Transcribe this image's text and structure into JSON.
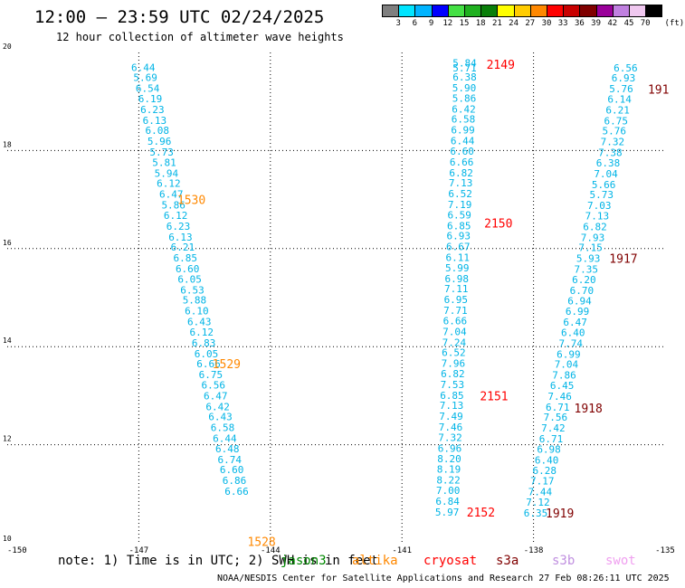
{
  "header": {
    "title": "12:00 – 23:59 UTC 02/24/2025",
    "subtitle": "12 hour collection of altimeter wave heights"
  },
  "colorbar": {
    "unit": "(ft)",
    "labels": [
      "3",
      "6",
      "9",
      "12",
      "15",
      "18",
      "21",
      "24",
      "27",
      "30",
      "33",
      "36",
      "39",
      "42",
      "45",
      "70"
    ],
    "colors": [
      "#7f7f7f",
      "#00e5ff",
      "#00b4ff",
      "#0000ff",
      "#44e044",
      "#1fb01f",
      "#0a7f0a",
      "#ffff00",
      "#ffcc00",
      "#ff8800",
      "#ff0000",
      "#c80000",
      "#800000",
      "#9a009a",
      "#c080e0",
      "#f0c8f0",
      "#000000"
    ]
  },
  "chart_data": {
    "type": "scatter",
    "xlabel": "",
    "ylabel": "",
    "xlim": [
      -150,
      -135
    ],
    "ylim": [
      10,
      20
    ],
    "xticks": [
      "-150",
      "-147",
      "-144",
      "-141",
      "-138",
      "-135"
    ],
    "yticks": [
      "10",
      "12",
      "14",
      "16",
      "18",
      "20"
    ],
    "grid": true,
    "tracks": [
      {
        "satellite": "altika",
        "color": "#00b4e6",
        "label_color": "#ff8800",
        "points": [
          {
            "lon": -146.9,
            "lat": 19.7,
            "v": "6.44"
          },
          {
            "lon": -146.85,
            "lat": 19.49,
            "v": "5.69"
          },
          {
            "lon": -146.8,
            "lat": 19.27,
            "v": "6.54"
          },
          {
            "lon": -146.74,
            "lat": 19.06,
            "v": "6.19"
          },
          {
            "lon": -146.69,
            "lat": 18.84,
            "v": "6.23"
          },
          {
            "lon": -146.64,
            "lat": 18.62,
            "v": "6.13"
          },
          {
            "lon": -146.58,
            "lat": 18.41,
            "v": "6.08"
          },
          {
            "lon": -146.53,
            "lat": 18.19,
            "v": "5.96"
          },
          {
            "lon": -146.48,
            "lat": 17.97,
            "v": "5.73"
          },
          {
            "lon": -146.42,
            "lat": 17.76,
            "v": "5.81"
          },
          {
            "lon": -146.37,
            "lat": 17.54,
            "v": "5.94"
          },
          {
            "lon": -146.32,
            "lat": 17.33,
            "v": "6.12"
          },
          {
            "lon": -146.26,
            "lat": 17.11,
            "v": "6.47"
          },
          {
            "lon": -146.21,
            "lat": 16.89,
            "v": "5.86"
          },
          {
            "lon": -146.16,
            "lat": 16.68,
            "v": "6.12"
          },
          {
            "lon": -146.1,
            "lat": 16.46,
            "v": "6.23"
          },
          {
            "lon": -146.05,
            "lat": 16.24,
            "v": "6.13"
          },
          {
            "lon": -146.0,
            "lat": 16.03,
            "v": "6.21"
          },
          {
            "lon": -145.94,
            "lat": 15.81,
            "v": "6.85"
          },
          {
            "lon": -145.89,
            "lat": 15.59,
            "v": "6.60"
          },
          {
            "lon": -145.84,
            "lat": 15.38,
            "v": "6.05"
          },
          {
            "lon": -145.78,
            "lat": 15.16,
            "v": "6.53"
          },
          {
            "lon": -145.73,
            "lat": 14.95,
            "v": "5.88"
          },
          {
            "lon": -145.68,
            "lat": 14.73,
            "v": "6.10"
          },
          {
            "lon": -145.62,
            "lat": 14.51,
            "v": "6.43"
          },
          {
            "lon": -145.57,
            "lat": 14.3,
            "v": "6.12"
          },
          {
            "lon": -145.52,
            "lat": 14.08,
            "v": "6.83"
          },
          {
            "lon": -145.46,
            "lat": 13.86,
            "v": "6.05"
          },
          {
            "lon": -145.41,
            "lat": 13.65,
            "v": "6.66"
          },
          {
            "lon": -145.36,
            "lat": 13.43,
            "v": "6.75"
          },
          {
            "lon": -145.3,
            "lat": 13.22,
            "v": "6.56"
          },
          {
            "lon": -145.25,
            "lat": 13.0,
            "v": "6.47"
          },
          {
            "lon": -145.2,
            "lat": 12.78,
            "v": "6.42"
          },
          {
            "lon": -145.14,
            "lat": 12.57,
            "v": "6.43"
          },
          {
            "lon": -145.09,
            "lat": 12.35,
            "v": "6.58"
          },
          {
            "lon": -145.04,
            "lat": 12.13,
            "v": "6.44"
          },
          {
            "lon": -144.98,
            "lat": 11.92,
            "v": "6.48"
          },
          {
            "lon": -144.93,
            "lat": 11.7,
            "v": "6.74"
          },
          {
            "lon": -144.88,
            "lat": 11.49,
            "v": "6.60"
          },
          {
            "lon": -144.82,
            "lat": 11.27,
            "v": "6.86"
          },
          {
            "lon": -144.77,
            "lat": 11.05,
            "v": "6.66"
          }
        ],
        "times": [
          {
            "lon": -145.8,
            "lat": 17.0,
            "t": "1530"
          },
          {
            "lon": -145.0,
            "lat": 13.65,
            "t": "1529"
          },
          {
            "lon": -144.2,
            "lat": 10.03,
            "t": "1528"
          }
        ]
      },
      {
        "satellite": "cryosat",
        "color": "#00b4e6",
        "label_color": "#ff0000",
        "points": [
          {
            "lon": -139.57,
            "lat": 19.79,
            "v": "5.84"
          },
          {
            "lon": -139.57,
            "lat": 19.69,
            "v": "5.71"
          },
          {
            "lon": -139.57,
            "lat": 19.5,
            "v": "6.38"
          },
          {
            "lon": -139.58,
            "lat": 19.28,
            "v": "5.90"
          },
          {
            "lon": -139.58,
            "lat": 19.07,
            "v": "5.86"
          },
          {
            "lon": -139.59,
            "lat": 18.85,
            "v": "6.42"
          },
          {
            "lon": -139.6,
            "lat": 18.64,
            "v": "6.58"
          },
          {
            "lon": -139.61,
            "lat": 18.42,
            "v": "6.99"
          },
          {
            "lon": -139.62,
            "lat": 18.2,
            "v": "6.44"
          },
          {
            "lon": -139.63,
            "lat": 17.99,
            "v": "6.60"
          },
          {
            "lon": -139.64,
            "lat": 17.77,
            "v": "6.66"
          },
          {
            "lon": -139.65,
            "lat": 17.55,
            "v": "6.82"
          },
          {
            "lon": -139.66,
            "lat": 17.34,
            "v": "7.13"
          },
          {
            "lon": -139.67,
            "lat": 17.12,
            "v": "6.52"
          },
          {
            "lon": -139.68,
            "lat": 16.9,
            "v": "7.19"
          },
          {
            "lon": -139.69,
            "lat": 16.69,
            "v": "6.59"
          },
          {
            "lon": -139.7,
            "lat": 16.47,
            "v": "6.85"
          },
          {
            "lon": -139.71,
            "lat": 16.26,
            "v": "6.93"
          },
          {
            "lon": -139.72,
            "lat": 16.04,
            "v": "6.67"
          },
          {
            "lon": -139.73,
            "lat": 15.82,
            "v": "6.11"
          },
          {
            "lon": -139.74,
            "lat": 15.61,
            "v": "5.99"
          },
          {
            "lon": -139.75,
            "lat": 15.39,
            "v": "6.98"
          },
          {
            "lon": -139.76,
            "lat": 15.18,
            "v": "7.11"
          },
          {
            "lon": -139.77,
            "lat": 14.96,
            "v": "6.95"
          },
          {
            "lon": -139.78,
            "lat": 14.74,
            "v": "7.71"
          },
          {
            "lon": -139.79,
            "lat": 14.53,
            "v": "6.66"
          },
          {
            "lon": -139.8,
            "lat": 14.31,
            "v": "7.04"
          },
          {
            "lon": -139.81,
            "lat": 14.09,
            "v": "7.24"
          },
          {
            "lon": -139.82,
            "lat": 13.88,
            "v": "6.52"
          },
          {
            "lon": -139.83,
            "lat": 13.66,
            "v": "7.96"
          },
          {
            "lon": -139.84,
            "lat": 13.45,
            "v": "6.82"
          },
          {
            "lon": -139.85,
            "lat": 13.23,
            "v": "7.53"
          },
          {
            "lon": -139.86,
            "lat": 13.01,
            "v": "6.85"
          },
          {
            "lon": -139.87,
            "lat": 12.8,
            "v": "7.13"
          },
          {
            "lon": -139.88,
            "lat": 12.58,
            "v": "7.49"
          },
          {
            "lon": -139.89,
            "lat": 12.36,
            "v": "7.46"
          },
          {
            "lon": -139.9,
            "lat": 12.15,
            "v": "7.32"
          },
          {
            "lon": -139.91,
            "lat": 11.93,
            "v": "6.96"
          },
          {
            "lon": -139.92,
            "lat": 11.72,
            "v": "8.20"
          },
          {
            "lon": -139.93,
            "lat": 11.5,
            "v": "8.19"
          },
          {
            "lon": -139.94,
            "lat": 11.28,
            "v": "8.22"
          },
          {
            "lon": -139.95,
            "lat": 11.07,
            "v": "7.00"
          },
          {
            "lon": -139.96,
            "lat": 10.85,
            "v": "6.84"
          },
          {
            "lon": -139.97,
            "lat": 10.63,
            "v": "5.97"
          }
        ],
        "times": [
          {
            "lon": -138.75,
            "lat": 19.76,
            "t": "2149"
          },
          {
            "lon": -138.8,
            "lat": 16.52,
            "t": "2150"
          },
          {
            "lon": -138.9,
            "lat": 13.0,
            "t": "2151"
          },
          {
            "lon": -139.2,
            "lat": 10.63,
            "t": "2152"
          }
        ]
      },
      {
        "satellite": "s3a",
        "color": "#00b4e6",
        "label_color": "#800000",
        "points": [
          {
            "lon": -135.9,
            "lat": 19.69,
            "v": "6.56"
          },
          {
            "lon": -135.95,
            "lat": 19.48,
            "v": "6.93"
          },
          {
            "lon": -136.0,
            "lat": 19.26,
            "v": "5.76"
          },
          {
            "lon": -136.04,
            "lat": 19.05,
            "v": "6.14"
          },
          {
            "lon": -136.08,
            "lat": 18.83,
            "v": "6.21"
          },
          {
            "lon": -136.12,
            "lat": 18.61,
            "v": "6.75"
          },
          {
            "lon": -136.16,
            "lat": 18.4,
            "v": "5.76"
          },
          {
            "lon": -136.2,
            "lat": 18.18,
            "v": "7.32"
          },
          {
            "lon": -136.25,
            "lat": 17.96,
            "v": "7.38"
          },
          {
            "lon": -136.3,
            "lat": 17.75,
            "v": "6.38"
          },
          {
            "lon": -136.35,
            "lat": 17.53,
            "v": "7.04"
          },
          {
            "lon": -136.4,
            "lat": 17.31,
            "v": "5.66"
          },
          {
            "lon": -136.45,
            "lat": 17.1,
            "v": "5.73"
          },
          {
            "lon": -136.5,
            "lat": 16.88,
            "v": "7.03"
          },
          {
            "lon": -136.55,
            "lat": 16.67,
            "v": "7.13"
          },
          {
            "lon": -136.6,
            "lat": 16.45,
            "v": "6.82"
          },
          {
            "lon": -136.65,
            "lat": 16.23,
            "v": "7.93"
          },
          {
            "lon": -136.7,
            "lat": 16.02,
            "v": "7.15"
          },
          {
            "lon": -136.75,
            "lat": 15.8,
            "v": "5.93"
          },
          {
            "lon": -136.8,
            "lat": 15.58,
            "v": "7.35"
          },
          {
            "lon": -136.85,
            "lat": 15.37,
            "v": "6.20"
          },
          {
            "lon": -136.9,
            "lat": 15.15,
            "v": "6.70"
          },
          {
            "lon": -136.95,
            "lat": 14.94,
            "v": "6.94"
          },
          {
            "lon": -137.0,
            "lat": 14.72,
            "v": "6.99"
          },
          {
            "lon": -137.05,
            "lat": 14.5,
            "v": "6.47"
          },
          {
            "lon": -137.1,
            "lat": 14.29,
            "v": "6.40"
          },
          {
            "lon": -137.15,
            "lat": 14.07,
            "v": "7.74"
          },
          {
            "lon": -137.2,
            "lat": 13.85,
            "v": "6.99"
          },
          {
            "lon": -137.25,
            "lat": 13.64,
            "v": "7.04"
          },
          {
            "lon": -137.3,
            "lat": 13.42,
            "v": "7.86"
          },
          {
            "lon": -137.35,
            "lat": 13.21,
            "v": "6.45"
          },
          {
            "lon": -137.4,
            "lat": 12.99,
            "v": "7.46"
          },
          {
            "lon": -137.45,
            "lat": 12.77,
            "v": "6.71"
          },
          {
            "lon": -137.5,
            "lat": 12.56,
            "v": "7.56"
          },
          {
            "lon": -137.55,
            "lat": 12.34,
            "v": "7.42"
          },
          {
            "lon": -137.6,
            "lat": 12.12,
            "v": "6.71"
          },
          {
            "lon": -137.65,
            "lat": 11.91,
            "v": "6.98"
          },
          {
            "lon": -137.7,
            "lat": 11.69,
            "v": "6.40"
          },
          {
            "lon": -137.75,
            "lat": 11.48,
            "v": "6.28"
          },
          {
            "lon": -137.8,
            "lat": 11.26,
            "v": "7.17"
          },
          {
            "lon": -137.85,
            "lat": 11.04,
            "v": "7.44"
          },
          {
            "lon": -137.9,
            "lat": 10.83,
            "v": "7.12"
          },
          {
            "lon": -137.95,
            "lat": 10.61,
            "v": "6.35"
          }
        ],
        "times": [
          {
            "lon": -135.15,
            "lat": 19.25,
            "t": "191"
          },
          {
            "lon": -135.95,
            "lat": 15.8,
            "t": "1917"
          },
          {
            "lon": -136.75,
            "lat": 12.75,
            "t": "1918"
          },
          {
            "lon": -137.4,
            "lat": 10.61,
            "t": "1919"
          }
        ]
      }
    ]
  },
  "footer": {
    "note": "note: 1) Time is in UTC; 2) SWH is in feet",
    "credit": "NOAA/NESDIS Center for Satellite Applications and Research   27 Feb 08:26:11 UTC 2025",
    "satellites": [
      {
        "name": "jason3",
        "color": "#008800"
      },
      {
        "name": "altika",
        "color": "#ff8800"
      },
      {
        "name": "cryosat",
        "color": "#ff0000"
      },
      {
        "name": "s3a",
        "color": "#800000"
      },
      {
        "name": "s3b",
        "color": "#c090e0"
      },
      {
        "name": "swot",
        "color": "#f0a0f0"
      }
    ]
  }
}
